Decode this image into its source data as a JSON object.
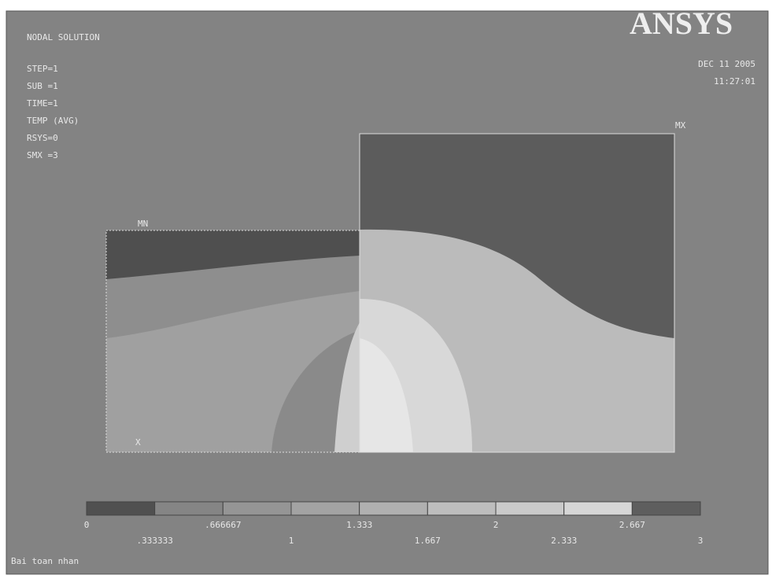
{
  "header": {
    "title": "NODAL SOLUTION",
    "logo": "ANSYS",
    "date": "DEC 11 2005",
    "time": "11:27:01"
  },
  "info": [
    "STEP=1",
    "SUB =1",
    "TIME=1",
    "TEMP     (AVG)",
    "RSYS=0",
    "SMX =3"
  ],
  "plot": {
    "max_label": "MX",
    "min_label": "MN",
    "axis_label": "X"
  },
  "legend": {
    "labels": [
      "0",
      ".333333",
      ".666667",
      "1",
      "1.333",
      "1.667",
      "2",
      "2.333",
      "2.667",
      "3"
    ],
    "colors": [
      "#505050",
      "#858585",
      "#959595",
      "#a3a3a3",
      "#b0b0b0",
      "#bdbdbd",
      "#cacaca",
      "#d6d6d6",
      "#5e5e5e"
    ]
  },
  "footer": "Bai toan nhan"
}
